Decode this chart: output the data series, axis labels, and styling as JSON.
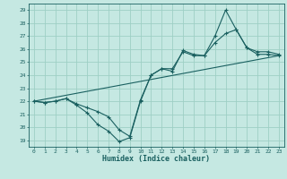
{
  "xlabel": "Humidex (Indice chaleur)",
  "xlim": [
    -0.5,
    23.5
  ],
  "ylim": [
    18.5,
    29.5
  ],
  "xticks": [
    0,
    1,
    2,
    3,
    4,
    5,
    6,
    7,
    8,
    9,
    10,
    11,
    12,
    13,
    14,
    15,
    16,
    17,
    18,
    19,
    20,
    21,
    22,
    23
  ],
  "yticks": [
    19,
    20,
    21,
    22,
    23,
    24,
    25,
    26,
    27,
    28,
    29
  ],
  "bg_color": "#c5e8e2",
  "grid_color": "#9ecfc5",
  "line_color": "#1a6060",
  "line1_x": [
    0,
    1,
    2,
    3,
    4,
    5,
    6,
    7,
    8,
    9,
    10,
    11,
    12,
    13,
    14,
    15,
    16,
    17,
    18,
    19,
    20,
    21,
    22,
    23
  ],
  "line1_y": [
    22,
    21.9,
    22,
    22.2,
    21.7,
    21.1,
    20.2,
    19.7,
    18.9,
    19.2,
    22.0,
    24.0,
    24.5,
    24.3,
    25.9,
    25.6,
    25.5,
    27.0,
    29.0,
    27.5,
    26.1,
    25.8,
    25.8,
    25.6
  ],
  "line2_x": [
    0,
    1,
    2,
    3,
    4,
    5,
    6,
    7,
    8,
    9,
    10,
    11,
    12,
    13,
    14,
    15,
    16,
    17,
    18,
    19,
    20,
    21,
    22,
    23
  ],
  "line2_y": [
    22,
    21.9,
    22,
    22.2,
    21.8,
    21.5,
    21.2,
    20.8,
    19.8,
    19.3,
    22.1,
    24.0,
    24.5,
    24.5,
    25.8,
    25.5,
    25.5,
    26.5,
    27.2,
    27.5,
    26.1,
    25.6,
    25.6,
    25.5
  ],
  "line3_x": [
    0,
    23
  ],
  "line3_y": [
    22,
    25.5
  ]
}
